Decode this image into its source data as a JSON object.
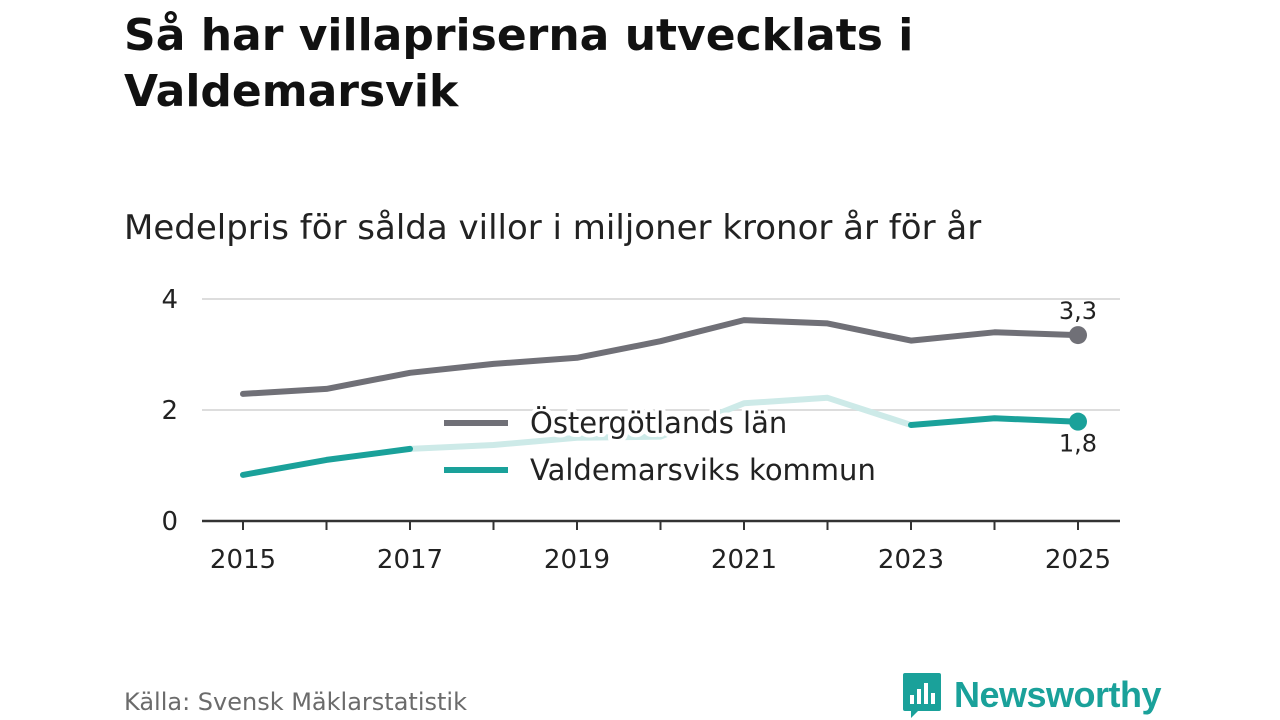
{
  "title": "Så har villapriserna utvecklats i Valdemarsvik",
  "subtitle": "Medelpris för sålda villor i miljoner kronor år för år",
  "source": "Källa: Svensk Mäklarstatistik",
  "brand": {
    "name": "Newsworthy",
    "icon": "newsworthy-logo-icon"
  },
  "colors": {
    "lan": "#707077",
    "kommun": "#1aa19a",
    "kommun_faded": "#cdeae8",
    "grid": "#dddddd",
    "axis": "#333333"
  },
  "chart_data": {
    "type": "line",
    "title": "Så har villapriserna utvecklats i Valdemarsvik",
    "ylabel": "Medelpris för sålda villor i miljoner kronor år för år",
    "xlabel": "",
    "x": [
      2015,
      2016,
      2017,
      2018,
      2019,
      2020,
      2021,
      2022,
      2023,
      2024,
      2025
    ],
    "xlim": [
      2014.5,
      2025.5
    ],
    "ylim": [
      0,
      4
    ],
    "yticks": [
      0,
      2,
      4
    ],
    "xticks": [
      2015,
      2017,
      2019,
      2021,
      2023,
      2025
    ],
    "legend_position": "center",
    "series": [
      {
        "name": "Östergötlands län",
        "values": [
          2.29,
          2.38,
          2.67,
          2.83,
          2.94,
          3.24,
          3.62,
          3.56,
          3.25,
          3.4,
          3.35
        ],
        "end_label": "3,3"
      },
      {
        "name": "Valdemarsviks kommun",
        "values": [
          0.83,
          1.1,
          1.3,
          1.37,
          1.5,
          1.52,
          2.12,
          2.22,
          1.73,
          1.85,
          1.79
        ],
        "faded_from_index": 2,
        "faded_to_index": 8,
        "end_label": "1,8"
      }
    ]
  }
}
